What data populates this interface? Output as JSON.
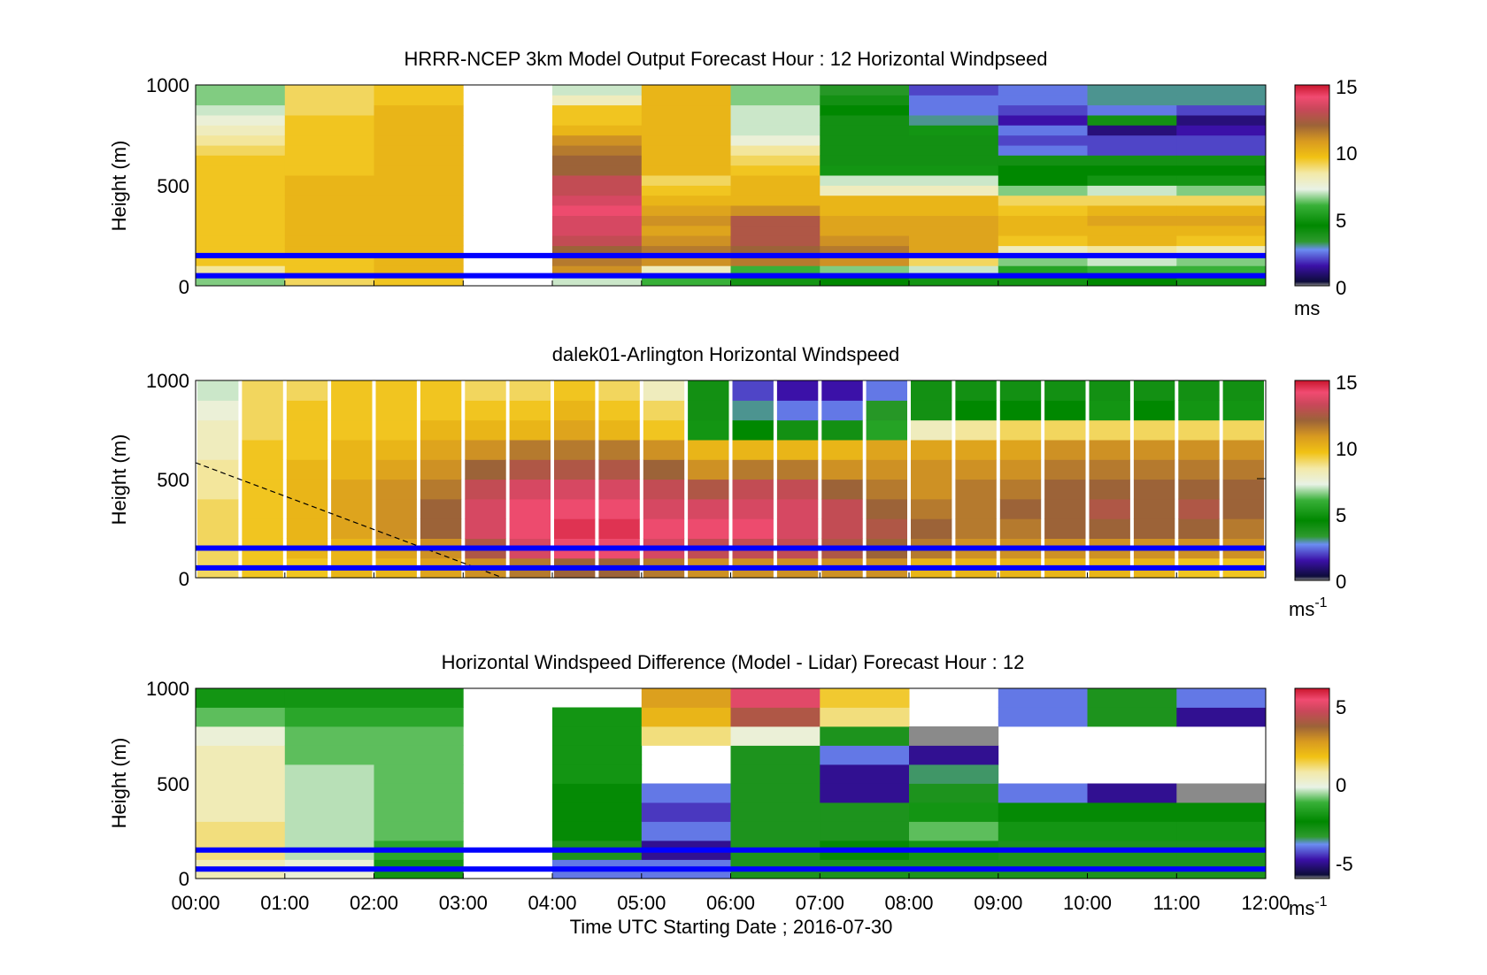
{
  "figure": {
    "xlabel": "Time UTC  Starting Date ; 2016-07-30",
    "xticks": [
      "00:00",
      "01:00",
      "02:00",
      "03:00",
      "04:00",
      "05:00",
      "06:00",
      "07:00",
      "08:00",
      "09:00",
      "10:00",
      "11:00",
      "12:00"
    ],
    "line_color": "#0000ff"
  },
  "chart_data": [
    {
      "type": "heatmap",
      "title": "HRRR-NCEP 3km Model Output   Forecast Hour : 12 Horizontal Windpseed",
      "ylabel": "Height (m)",
      "yticks": [
        "0",
        "500",
        "1000"
      ],
      "xlim": [
        0,
        12
      ],
      "ylim": [
        0,
        1000
      ],
      "colorbar": {
        "ticks": [
          "0",
          "5",
          "10",
          "15"
        ],
        "unit": "ms",
        "range": [
          0,
          15
        ]
      },
      "heights_m": [
        25,
        75,
        125,
        175,
        225,
        275,
        325,
        375,
        425,
        475,
        525,
        575,
        625,
        675,
        725,
        775,
        825,
        875,
        925,
        975
      ],
      "columns_hours": [
        0,
        1,
        2,
        3,
        4,
        5,
        6,
        7,
        8,
        9,
        10,
        11
      ],
      "values": [
        [
          6.5,
          9,
          9.5,
          null,
          7,
          6,
          5,
          4.5,
          5,
          5,
          4.5,
          5
        ],
        [
          8.5,
          9.5,
          10,
          null,
          11,
          8,
          6,
          6.5,
          7,
          5.5,
          6,
          6
        ],
        [
          9.5,
          9.5,
          10,
          null,
          11.5,
          11,
          11.5,
          11,
          9,
          6.5,
          7,
          6.5
        ],
        [
          9.5,
          10,
          10,
          null,
          12,
          11.5,
          12,
          11.5,
          10.5,
          8,
          8.5,
          8
        ],
        [
          9.5,
          10,
          10,
          null,
          13,
          11,
          12.5,
          11,
          10.5,
          9.5,
          10,
          9.5
        ],
        [
          9.5,
          10,
          10,
          null,
          13.5,
          10.5,
          12.5,
          10.5,
          10.5,
          10,
          10,
          10
        ],
        [
          9.5,
          10,
          10,
          null,
          13.5,
          11,
          12.5,
          10.5,
          10.5,
          10,
          10.5,
          10.5
        ],
        [
          9.5,
          10,
          10,
          null,
          14,
          10.5,
          11,
          10,
          10,
          9.5,
          10,
          10
        ],
        [
          9.5,
          10,
          10,
          null,
          13.5,
          10,
          10,
          10,
          10,
          9,
          9,
          9
        ],
        [
          9.5,
          10,
          10,
          null,
          13,
          9.5,
          10,
          8,
          8,
          6.5,
          7,
          6.5
        ],
        [
          9.5,
          10,
          10,
          null,
          13,
          9,
          10,
          7,
          7,
          4.5,
          5,
          5
        ],
        [
          9.5,
          9.5,
          10,
          null,
          12,
          10,
          9.5,
          5,
          5,
          4.5,
          4.5,
          4.5
        ],
        [
          9.5,
          9.5,
          10,
          null,
          12,
          10,
          9,
          4,
          4,
          4,
          4,
          4
        ],
        [
          9,
          9.5,
          10,
          null,
          11.5,
          10,
          8.5,
          4,
          4,
          2.5,
          2,
          2
        ],
        [
          8.5,
          9.5,
          10,
          null,
          11,
          10,
          7.5,
          4,
          4,
          2,
          2,
          2
        ],
        [
          8,
          9.5,
          10,
          null,
          10,
          10,
          7,
          4,
          5,
          2.5,
          1,
          1.5
        ],
        [
          7.5,
          9.5,
          10,
          null,
          9.5,
          10,
          7,
          4,
          3,
          1.5,
          4,
          1
        ],
        [
          7,
          9,
          10,
          null,
          9.5,
          10,
          7,
          4.5,
          2.5,
          2,
          2.5,
          2
        ],
        [
          6.5,
          9,
          9.5,
          null,
          8,
          10,
          6.5,
          4,
          2.5,
          2.5,
          3,
          3
        ],
        [
          6.5,
          9,
          9.5,
          null,
          7,
          10,
          6.5,
          3.5,
          2,
          2.5,
          3,
          3
        ]
      ],
      "lines_m": [
        50,
        150
      ]
    },
    {
      "type": "heatmap",
      "title": "dalek01-Arlington  Horizontal Windspeed",
      "ylabel": "Height (m)",
      "yticks": [
        "0",
        "500",
        "1000"
      ],
      "xlim": [
        0,
        12
      ],
      "ylim": [
        0,
        1000
      ],
      "colorbar": {
        "ticks": [
          "0",
          "5",
          "10",
          "15"
        ],
        "unit": "ms-1",
        "range": [
          0,
          15
        ]
      },
      "profile_x_hours": [
        0.25,
        0.75,
        1.25,
        1.75,
        2.25,
        2.75,
        3.25,
        3.75,
        4.25,
        4.75,
        5.25,
        5.75,
        6.25,
        6.75,
        7.25,
        7.75,
        8.25,
        8.75,
        9.25,
        9.75,
        10.25,
        10.75,
        11.25,
        11.75
      ],
      "profile_heights_m": [
        50,
        150,
        250,
        350,
        450,
        550,
        650,
        750,
        850,
        950
      ],
      "values": [
        [
          9,
          9.5,
          9.5,
          10,
          10,
          10.5,
          11,
          11.5,
          12,
          12,
          11.5,
          11,
          11,
          11,
          11,
          11,
          10,
          10,
          10,
          10,
          10,
          10,
          9.5,
          9.5
        ],
        [
          9,
          9.5,
          10,
          10,
          10.5,
          11,
          12.5,
          13.5,
          14,
          14,
          13.5,
          13,
          13,
          13,
          12.5,
          12,
          11.5,
          11,
          11,
          11,
          11,
          11,
          11,
          11
        ],
        [
          9,
          9.5,
          10,
          10.5,
          11,
          12,
          13.5,
          14,
          14.5,
          14.5,
          14,
          14,
          14,
          13.5,
          13,
          12.5,
          12,
          11.5,
          11.5,
          12,
          12,
          12,
          12,
          11.5
        ],
        [
          9,
          9.5,
          10,
          10.5,
          11,
          12,
          13.5,
          14,
          14,
          14,
          13.5,
          13.5,
          13.5,
          13.5,
          13,
          12,
          11.5,
          11.5,
          12,
          12,
          12.5,
          12,
          12.5,
          12
        ],
        [
          8.5,
          9.5,
          10,
          10.5,
          11,
          11.5,
          13,
          13.5,
          13.5,
          13.5,
          13,
          12.5,
          13,
          13,
          12,
          11.5,
          11,
          11.5,
          11.5,
          12,
          12,
          12,
          12,
          12
        ],
        [
          8.5,
          9.5,
          10,
          10,
          10.5,
          11,
          12,
          12.5,
          12.5,
          12.5,
          12,
          11,
          11.5,
          11.5,
          11,
          11,
          11,
          11,
          11,
          11.5,
          11.5,
          11.5,
          11.5,
          11.5
        ],
        [
          8,
          9.5,
          9.5,
          10,
          10,
          10.5,
          11,
          11.5,
          11.5,
          11.5,
          11,
          10,
          10,
          10,
          10,
          10.5,
          10.5,
          10.5,
          10.5,
          11,
          11,
          11,
          11,
          11
        ],
        [
          8,
          9,
          9.5,
          9.5,
          9.5,
          10,
          10,
          10,
          10.5,
          10,
          9.5,
          5,
          4.5,
          4,
          4,
          5.5,
          8,
          8.5,
          9,
          9,
          9,
          9,
          9,
          9
        ],
        [
          7.5,
          9,
          9.5,
          9.5,
          9.5,
          9.5,
          9.5,
          9.5,
          10,
          9.5,
          9,
          4,
          3,
          2.5,
          2.5,
          3.5,
          4,
          4.5,
          4.5,
          4.5,
          5,
          4.5,
          5,
          5
        ],
        [
          7,
          9,
          9,
          9.5,
          9.5,
          9.5,
          9,
          9,
          9.5,
          9,
          8,
          4,
          2,
          1.5,
          1.5,
          2.5,
          4,
          4,
          4,
          4,
          4,
          4,
          4,
          4
        ]
      ],
      "lines_m": [
        50,
        150
      ]
    },
    {
      "type": "heatmap",
      "title": "Horizontal Windspeed Difference (Model - Lidar) Forecast Hour : 12",
      "ylabel": "Height (m)",
      "yticks": [
        "0",
        "500",
        "1000"
      ],
      "xlim": [
        0,
        12
      ],
      "ylim": [
        0,
        1000
      ],
      "colorbar": {
        "ticks": [
          "-5",
          "0",
          "5"
        ],
        "unit": "ms-1",
        "range": [
          -6,
          6
        ]
      },
      "heights_m": [
        50,
        150,
        250,
        350,
        450,
        550,
        650,
        750,
        850,
        950
      ],
      "columns_hours": [
        0,
        1,
        2,
        3,
        4,
        5,
        6,
        7,
        8,
        9,
        10,
        11
      ],
      "values": [
        [
          0.5,
          0,
          -2,
          null,
          -4,
          -4,
          -3,
          -3,
          -3,
          -3,
          -3,
          -3
        ],
        [
          1,
          -0.5,
          -1.5,
          null,
          -3,
          -5,
          -3,
          -2.5,
          -2,
          -3,
          -3,
          -3
        ],
        [
          1,
          -0.5,
          -1,
          null,
          -2.5,
          -4,
          -3,
          -3,
          -1,
          -2,
          -2,
          -2
        ],
        [
          0.5,
          -0.5,
          -1,
          null,
          -2.5,
          -4.5,
          -3,
          -3,
          -2,
          -2.5,
          -2.5,
          -2.5
        ],
        [
          0.5,
          -0.5,
          -1,
          null,
          -2.5,
          -4,
          -3,
          -5,
          -3,
          -4,
          -5,
          -6
        ],
        [
          0.5,
          -0.5,
          -1,
          null,
          -2,
          null,
          -3,
          -5,
          -3.5,
          null,
          null,
          null
        ],
        [
          0.5,
          -1,
          -1,
          null,
          -2,
          null,
          -3,
          -4,
          -5,
          null,
          null,
          null
        ],
        [
          0,
          -1,
          -1,
          null,
          -2,
          1,
          0,
          -3,
          -6,
          null,
          null,
          null
        ],
        [
          -1,
          -1.5,
          -1.5,
          null,
          -2,
          2,
          4,
          1,
          null,
          -4,
          -3,
          -5
        ],
        [
          -2,
          -2,
          -2,
          null,
          null,
          2.5,
          5,
          1.5,
          null,
          -4,
          -3,
          -4
        ]
      ],
      "lines_m": [
        50,
        150
      ]
    }
  ]
}
